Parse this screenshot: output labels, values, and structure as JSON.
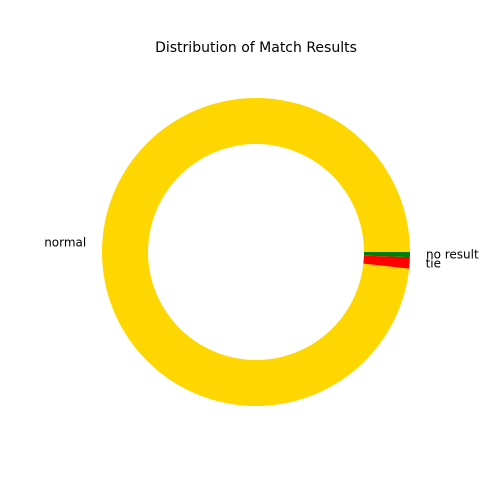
{
  "chart_data": {
    "type": "pie",
    "donut": true,
    "title": "Distribution of Match Results",
    "slices": [
      {
        "label": "normal",
        "value": 743,
        "color": "#FFD700"
      },
      {
        "label": "tie",
        "value": 9,
        "color": "#FF0000"
      },
      {
        "label": "no result",
        "value": 4,
        "color": "#008000"
      }
    ]
  }
}
